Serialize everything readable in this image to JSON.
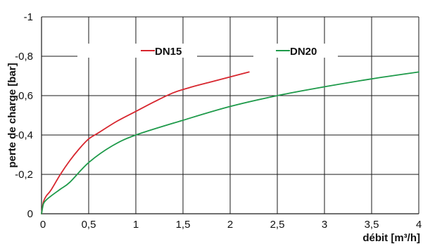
{
  "chart_data": {
    "type": "line",
    "xlabel": "débit [m³/h]",
    "ylabel": "perte de charge [bar]",
    "xlim": [
      0,
      4
    ],
    "ylim": [
      0,
      -1
    ],
    "x_ticks": [
      0,
      0.5,
      1,
      1.5,
      2,
      2.5,
      3,
      3.5,
      4
    ],
    "x_tick_labels": [
      "0",
      "0,5",
      "1",
      "1,5",
      "2",
      "2,5",
      "3",
      "3,5",
      "4"
    ],
    "y_ticks": [
      0,
      -0.2,
      -0.4,
      -0.6,
      -0.8,
      -1
    ],
    "y_tick_labels": [
      "0",
      "-0,2",
      "-0,4",
      "-0,6",
      "-0,8",
      "-1"
    ],
    "grid": true,
    "legend_position": "top",
    "series": [
      {
        "name": "DN15",
        "color": "#d7262e",
        "x": [
          0,
          0.02,
          0.05,
          0.1,
          0.2,
          0.3,
          0.4,
          0.5,
          0.6,
          0.8,
          1.0,
          1.2,
          1.4,
          1.6,
          1.8,
          2.0,
          2.2
        ],
        "y": [
          0,
          -0.06,
          -0.09,
          -0.12,
          -0.2,
          -0.27,
          -0.33,
          -0.38,
          -0.41,
          -0.47,
          -0.52,
          -0.57,
          -0.615,
          -0.645,
          -0.67,
          -0.695,
          -0.72
        ]
      },
      {
        "name": "DN20",
        "color": "#1e9a4a",
        "x": [
          0,
          0.02,
          0.05,
          0.1,
          0.2,
          0.3,
          0.5,
          0.75,
          1.0,
          1.5,
          2.0,
          2.5,
          3.0,
          3.5,
          4.0
        ],
        "y": [
          0,
          -0.05,
          -0.07,
          -0.09,
          -0.125,
          -0.16,
          -0.26,
          -0.345,
          -0.4,
          -0.475,
          -0.545,
          -0.6,
          -0.645,
          -0.685,
          -0.72
        ]
      }
    ]
  }
}
